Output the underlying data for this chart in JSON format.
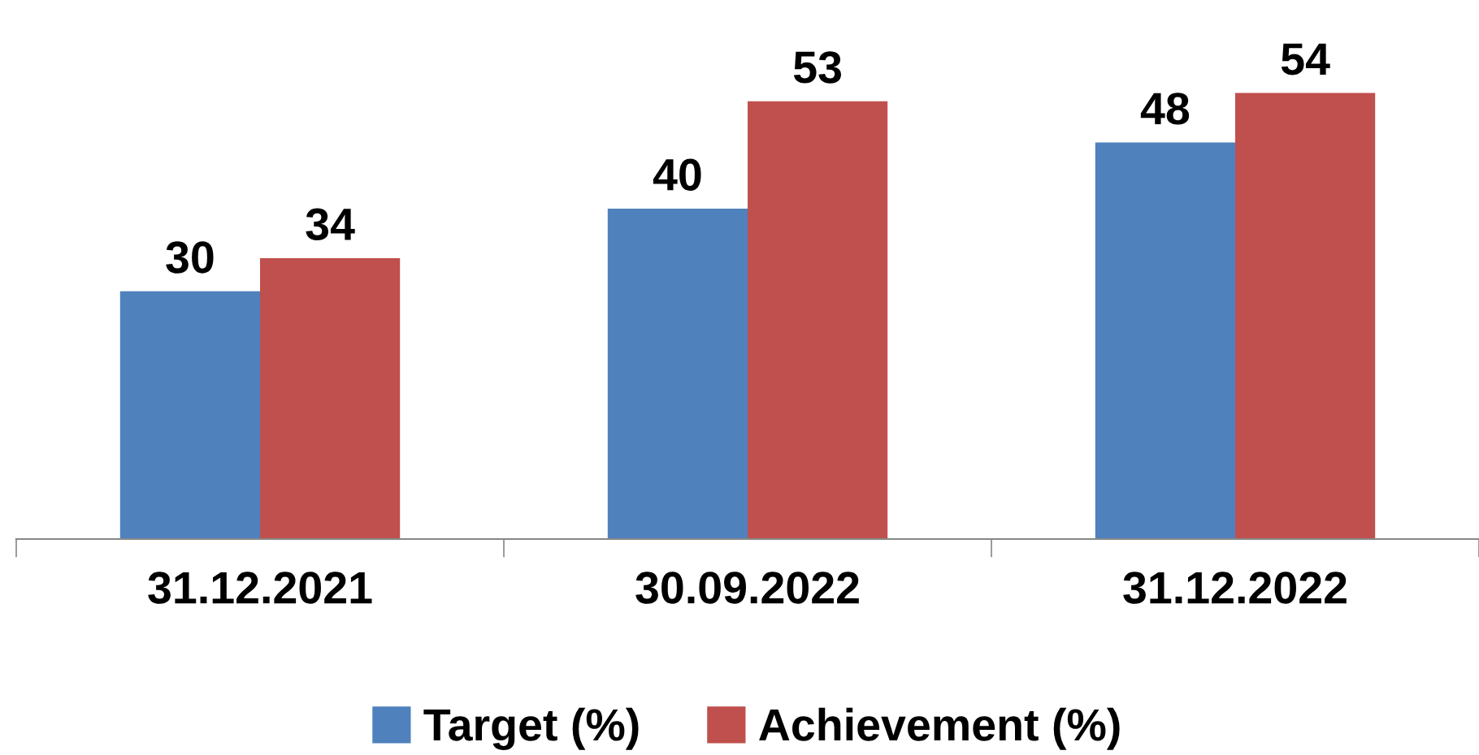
{
  "chart_data": {
    "type": "bar",
    "categories": [
      "31.12.2021",
      "30.09.2022",
      "31.12.2022"
    ],
    "series": [
      {
        "name": "Target (%)",
        "color": "#4f81bd",
        "values": [
          30,
          40,
          48
        ]
      },
      {
        "name": "Achievement (%)",
        "color": "#c0504d",
        "values": [
          34,
          53,
          54
        ]
      }
    ],
    "data_labels": true,
    "legend": "bottom",
    "grid": false,
    "tick_labels": "x"
  }
}
